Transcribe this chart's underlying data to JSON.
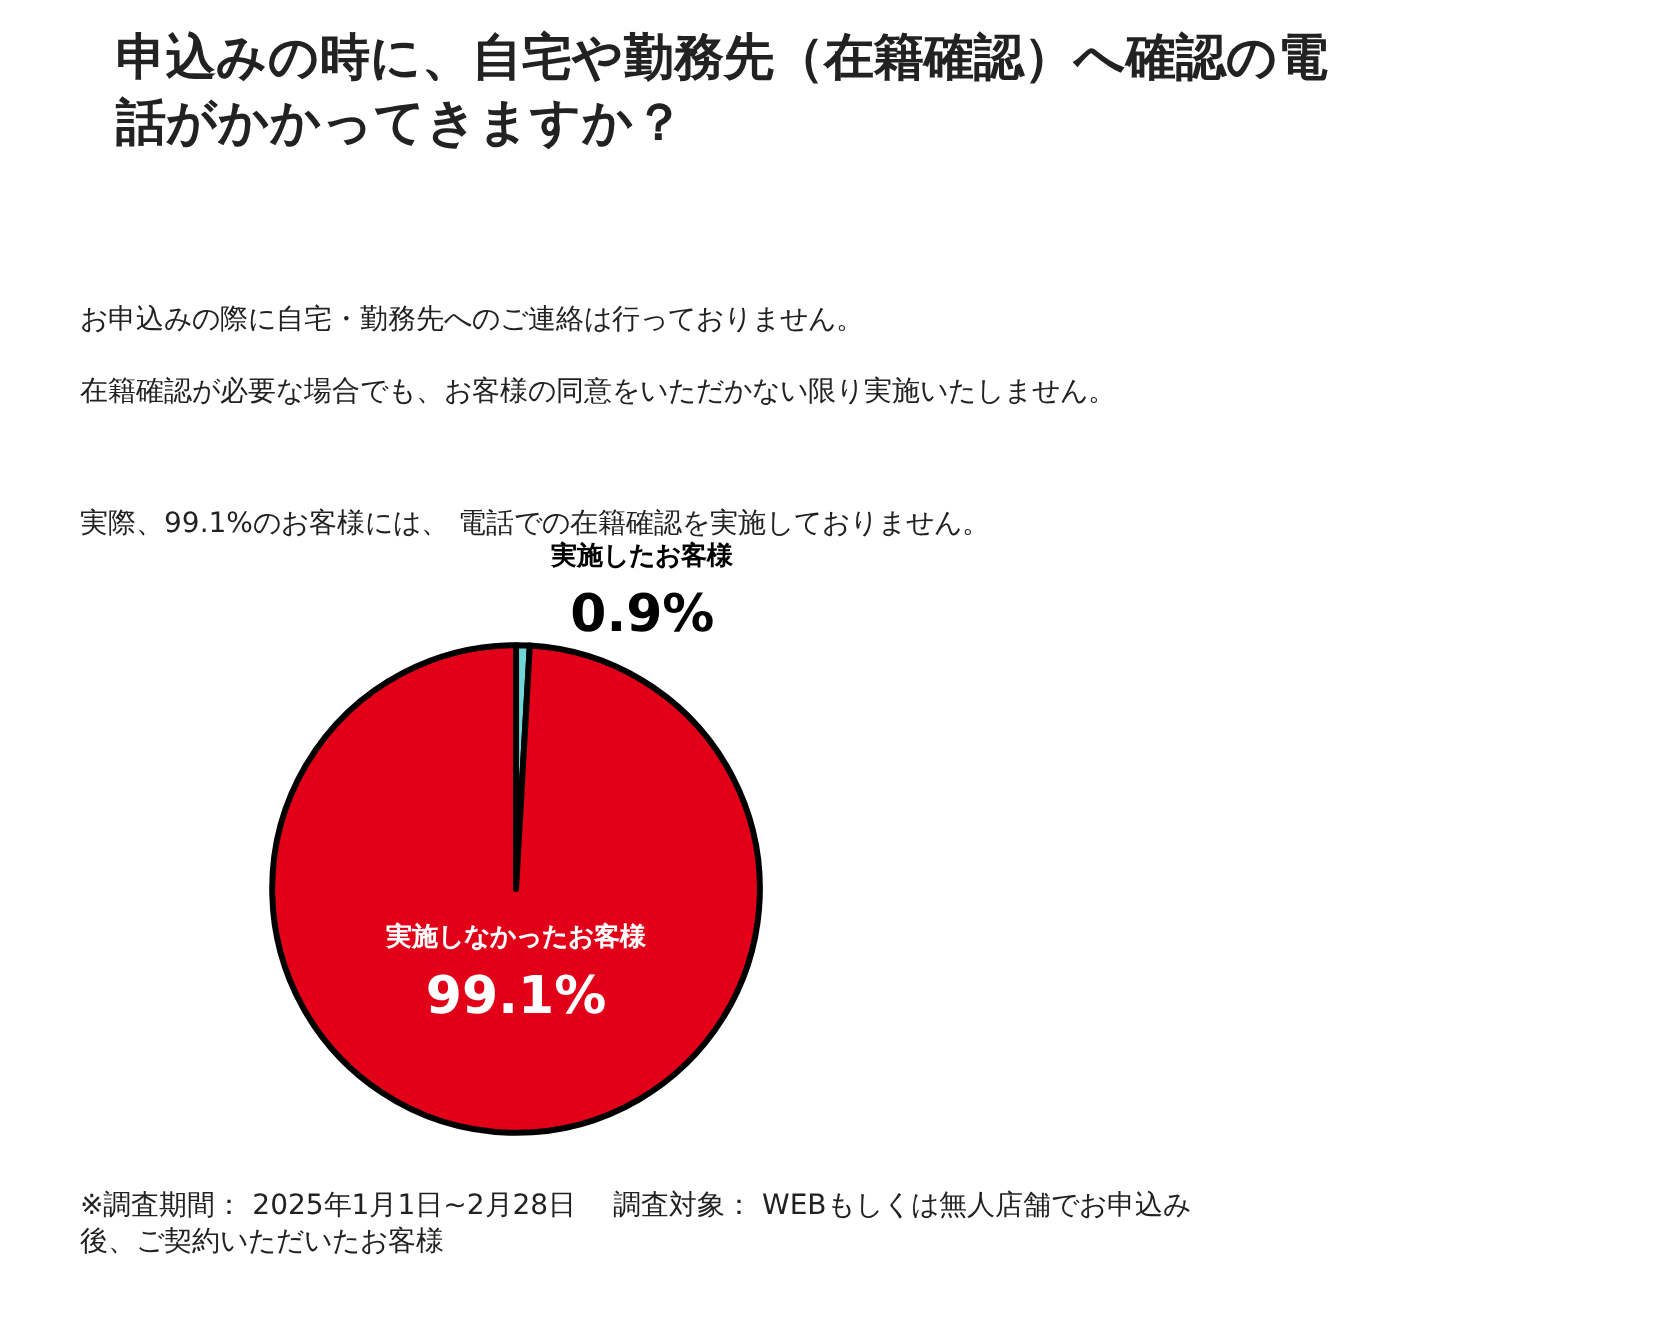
{
  "chart_data": {
    "type": "pie",
    "title": "申込みの時に、自宅や勤務先（在籍確認）へ確認の電話がかかってきますか？",
    "categories": [
      "実施したお客様",
      "実施しなかったお客様"
    ],
    "values": [
      0.9,
      99.1
    ],
    "colors": [
      "#6fd6d8",
      "#e20018"
    ],
    "value_labels": [
      "0.9%",
      "99.1%"
    ],
    "annotations": [
      "お申込みの際に自宅・勤務先へのご連絡は行っておりません。",
      "在籍確認が必要な場合でも、お客様の同意をいただかない限り実施いたしません。",
      "実際、99.1%のお客様には、 電話での在籍確認を実施しておりません。",
      "※調査期間： 2025年1月1日~2月28日　 調査対象： WEBもしくは無人店舗でお申込み後、ご契約いただいたお客様"
    ],
    "legend": false
  }
}
